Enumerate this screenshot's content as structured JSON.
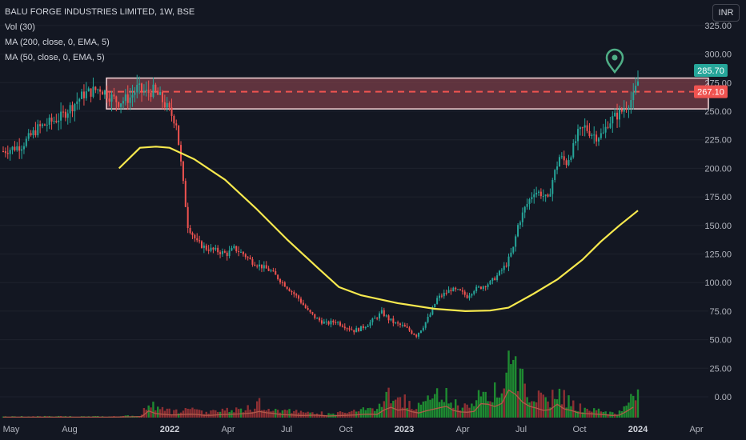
{
  "legend": {
    "title": "BALU FORGE INDUSTRIES LIMITED, 1W, BSE",
    "vol": "Vol (30)",
    "ma200": "MA (200, close, 0, EMA, 5)",
    "ma50": "MA (50, close, 0, EMA, 5)"
  },
  "currency_button": "INR",
  "colors": {
    "background": "#131722",
    "up": "#26a69a",
    "down": "#ef5350",
    "vol_up": "#1e8b31",
    "vol_down": "#8e2f33",
    "ma": "#f7e94e",
    "zone_border": "#f8d7da",
    "zone_fill": "#7a3e48",
    "marker": "#4fae86"
  },
  "chart_data": {
    "type": "candlestick",
    "price_axis": {
      "min": -4,
      "max": 325,
      "ticks": [
        "0.00",
        "25.00",
        "50.00",
        "75.00",
        "100.00",
        "125.00",
        "150.00",
        "175.00",
        "200.00",
        "225.00",
        "250.00",
        "275.00",
        "300.00",
        "325.00"
      ]
    },
    "time_axis": {
      "labels": [
        "May",
        "Aug",
        "2022",
        "Apr",
        "Jul",
        "Oct",
        "2023",
        "Apr",
        "Jul",
        "Oct",
        "2024",
        "Apr"
      ],
      "bold": [
        "2022",
        "2023",
        "2024"
      ]
    },
    "price_badges": [
      {
        "value": 285.7,
        "label": "285.70",
        "color": "#26a69a"
      },
      {
        "value": 267.1,
        "label": "267.10",
        "color": "#ef5350"
      }
    ],
    "zone": {
      "low": 252,
      "high": 279,
      "line": 267.1
    },
    "ma_line": [
      {
        "t": 0.188,
        "v": 200
      },
      {
        "t": 0.222,
        "v": 218
      },
      {
        "t": 0.248,
        "v": 219
      },
      {
        "t": 0.27,
        "v": 218
      },
      {
        "t": 0.31,
        "v": 208
      },
      {
        "t": 0.36,
        "v": 190
      },
      {
        "t": 0.41,
        "v": 165
      },
      {
        "t": 0.46,
        "v": 138
      },
      {
        "t": 0.51,
        "v": 113
      },
      {
        "t": 0.545,
        "v": 96
      },
      {
        "t": 0.58,
        "v": 89
      },
      {
        "t": 0.64,
        "v": 82
      },
      {
        "t": 0.7,
        "v": 77
      },
      {
        "t": 0.75,
        "v": 75
      },
      {
        "t": 0.79,
        "v": 75.5
      },
      {
        "t": 0.82,
        "v": 78
      },
      {
        "t": 0.86,
        "v": 90
      },
      {
        "t": 0.9,
        "v": 103
      },
      {
        "t": 0.94,
        "v": 120
      },
      {
        "t": 0.97,
        "v": 136
      },
      {
        "t": 1.0,
        "v": 150
      },
      {
        "t": 1.03,
        "v": 163
      }
    ],
    "close_path": [
      [
        0,
        215
      ],
      [
        8,
        220
      ],
      [
        15,
        235
      ],
      [
        25,
        245
      ],
      [
        30,
        255
      ],
      [
        35,
        265
      ],
      [
        42,
        270
      ],
      [
        47,
        262
      ],
      [
        50,
        258
      ],
      [
        55,
        262
      ],
      [
        58,
        270
      ],
      [
        62,
        266
      ],
      [
        65,
        268
      ],
      [
        68,
        262
      ],
      [
        72,
        250
      ],
      [
        75,
        240
      ],
      [
        80,
        150
      ],
      [
        84,
        135
      ],
      [
        88,
        130
      ],
      [
        92,
        128
      ],
      [
        97,
        125
      ],
      [
        100,
        130
      ],
      [
        104,
        125
      ],
      [
        108,
        118
      ],
      [
        112,
        114
      ],
      [
        116,
        110
      ],
      [
        120,
        102
      ],
      [
        124,
        94
      ],
      [
        128,
        86
      ],
      [
        132,
        75
      ],
      [
        136,
        68
      ],
      [
        140,
        64
      ],
      [
        144,
        66
      ],
      [
        148,
        62
      ],
      [
        152,
        58
      ],
      [
        155,
        60
      ],
      [
        159,
        65
      ],
      [
        162,
        70
      ],
      [
        164,
        74
      ],
      [
        167,
        68
      ],
      [
        170,
        64
      ],
      [
        173,
        62
      ],
      [
        176,
        58
      ],
      [
        179,
        54
      ],
      [
        182,
        62
      ],
      [
        185,
        72
      ],
      [
        188,
        86
      ],
      [
        191,
        90
      ],
      [
        194,
        94
      ],
      [
        198,
        92
      ],
      [
        201,
        88
      ],
      [
        204,
        94
      ],
      [
        207,
        96
      ],
      [
        211,
        100
      ],
      [
        214,
        106
      ],
      [
        218,
        116
      ],
      [
        221,
        130
      ],
      [
        223,
        150
      ],
      [
        226,
        165
      ],
      [
        230,
        180
      ],
      [
        233,
        178
      ],
      [
        236,
        172
      ],
      [
        238,
        190
      ],
      [
        241,
        210
      ],
      [
        244,
        205
      ],
      [
        247,
        218
      ],
      [
        249,
        230
      ],
      [
        252,
        236
      ],
      [
        254,
        232
      ],
      [
        257,
        228
      ],
      [
        260,
        230
      ],
      [
        262,
        240
      ],
      [
        265,
        245
      ],
      [
        268,
        250
      ],
      [
        271,
        258
      ],
      [
        273,
        262
      ],
      [
        275,
        276
      ]
    ],
    "volume": [
      [
        0,
        1
      ],
      [
        24,
        1
      ],
      [
        48,
        1
      ],
      [
        60,
        2
      ],
      [
        62,
        10
      ],
      [
        64,
        16
      ],
      [
        66,
        8
      ],
      [
        70,
        6
      ],
      [
        74,
        5
      ],
      [
        78,
        6
      ],
      [
        82,
        7
      ],
      [
        88,
        4
      ],
      [
        95,
        6
      ],
      [
        102,
        7
      ],
      [
        108,
        9
      ],
      [
        110,
        14
      ],
      [
        112,
        10
      ],
      [
        116,
        9
      ],
      [
        120,
        6
      ],
      [
        126,
        5
      ],
      [
        130,
        4
      ],
      [
        136,
        5
      ],
      [
        140,
        3
      ],
      [
        146,
        4
      ],
      [
        152,
        5
      ],
      [
        158,
        7
      ],
      [
        162,
        6
      ],
      [
        166,
        18
      ],
      [
        168,
        20
      ],
      [
        170,
        14
      ],
      [
        174,
        16
      ],
      [
        178,
        10
      ],
      [
        180,
        9
      ],
      [
        184,
        14
      ],
      [
        188,
        18
      ],
      [
        192,
        22
      ],
      [
        194,
        16
      ],
      [
        196,
        12
      ],
      [
        200,
        10
      ],
      [
        204,
        12
      ],
      [
        206,
        30
      ],
      [
        208,
        24
      ],
      [
        210,
        26
      ],
      [
        214,
        20
      ],
      [
        218,
        35
      ],
      [
        220,
        72
      ],
      [
        222,
        45
      ],
      [
        224,
        32
      ],
      [
        226,
        28
      ],
      [
        228,
        22
      ],
      [
        230,
        20
      ],
      [
        234,
        14
      ],
      [
        236,
        12
      ],
      [
        240,
        26
      ],
      [
        242,
        18
      ],
      [
        246,
        14
      ],
      [
        248,
        10
      ],
      [
        252,
        8
      ],
      [
        256,
        7
      ],
      [
        260,
        6
      ],
      [
        264,
        4
      ],
      [
        268,
        5
      ],
      [
        270,
        12
      ],
      [
        275,
        26
      ]
    ]
  }
}
